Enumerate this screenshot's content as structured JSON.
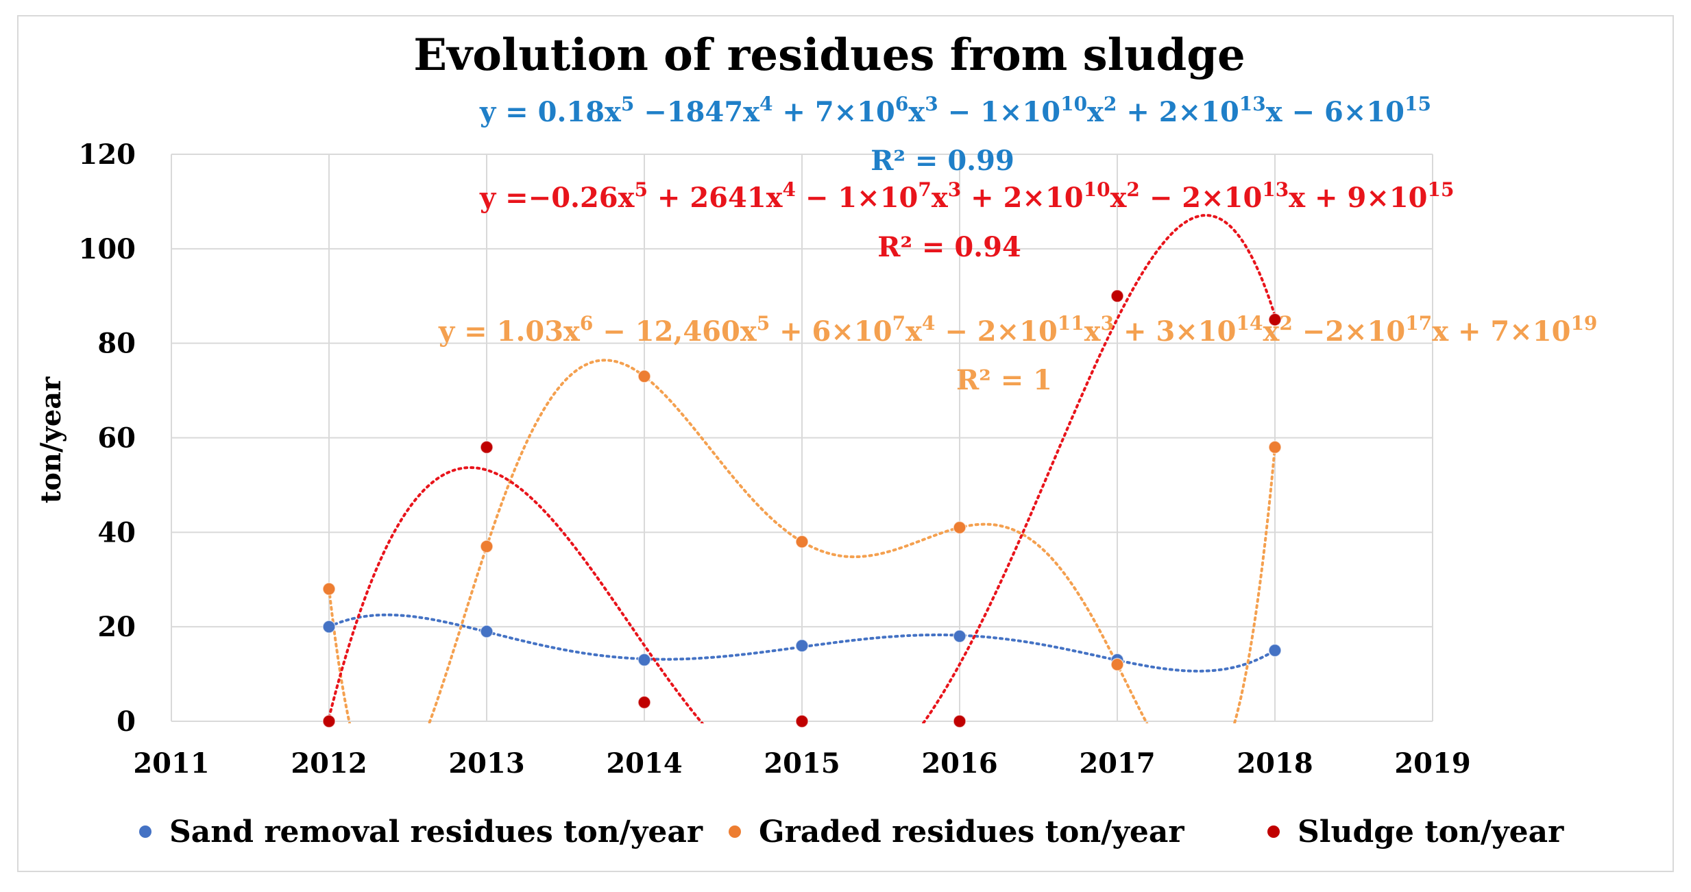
{
  "chart_data": {
    "type": "scatter",
    "title": "Evolution of residues from sludge",
    "xlabel": "",
    "ylabel": "ton/year",
    "xlim": [
      2011,
      2019
    ],
    "ylim": [
      0,
      120
    ],
    "x_ticks": [
      "2011",
      "2012",
      "2013",
      "2014",
      "2015",
      "2016",
      "2017",
      "2018",
      "2019"
    ],
    "y_ticks": [
      "0",
      "20",
      "40",
      "60",
      "80",
      "100",
      "120"
    ],
    "grid": true,
    "legend_position": "bottom",
    "x": [
      2012,
      2013,
      2014,
      2015,
      2016,
      2017,
      2018
    ],
    "series": [
      {
        "name": "Sand removal residues ton/year",
        "color": "#4472C4",
        "trend_color": "#4472C4",
        "values": [
          20,
          19,
          13,
          16,
          18,
          13,
          15
        ],
        "trendline": "polynomial order 5",
        "equation": {
          "parts": [
            [
              "y = 0.18x",
              ""
            ],
            [
              "5",
              "sup"
            ],
            [
              " −1847x",
              ""
            ],
            [
              "4",
              "sup"
            ],
            [
              " + 7×10",
              ""
            ],
            [
              "6",
              "sup"
            ],
            [
              "x",
              ""
            ],
            [
              "3",
              "sup"
            ],
            [
              " − 1×10",
              ""
            ],
            [
              "10",
              "sup"
            ],
            [
              "x",
              ""
            ],
            [
              "2",
              "sup"
            ],
            [
              " + 2×10",
              ""
            ],
            [
              "13",
              "sup"
            ],
            [
              "x − 6×10",
              ""
            ],
            [
              "15",
              "sup"
            ]
          ],
          "r2": "R² = 0.99"
        }
      },
      {
        "name": "Graded residues ton/year",
        "color": "#ED7D31",
        "trend_color": "#F4A04F",
        "values": [
          28,
          37,
          73,
          38,
          41,
          12,
          58
        ],
        "trendline": "polynomial order 6",
        "equation": {
          "parts": [
            [
              "y = 1.03x",
              ""
            ],
            [
              "6",
              "sup"
            ],
            [
              " − 12,460x",
              ""
            ],
            [
              "5",
              "sup"
            ],
            [
              " + 6×10",
              ""
            ],
            [
              "7",
              "sup"
            ],
            [
              "x",
              ""
            ],
            [
              "4",
              "sup"
            ],
            [
              " − 2×10",
              ""
            ],
            [
              "11",
              "sup"
            ],
            [
              "x",
              ""
            ],
            [
              "3",
              "sup"
            ],
            [
              " + 3×10",
              ""
            ],
            [
              "14",
              "sup"
            ],
            [
              "x",
              ""
            ],
            [
              "2",
              "sup"
            ],
            [
              " −2×10",
              ""
            ],
            [
              "17",
              "sup"
            ],
            [
              "x + 7×10",
              ""
            ],
            [
              "19",
              "sup"
            ]
          ],
          "r2": "R² = 1"
        }
      },
      {
        "name": "Sludge ton/year",
        "color": "#C00000",
        "trend_color": "#E8141B",
        "values": [
          0,
          58,
          4,
          0,
          0,
          90,
          85
        ],
        "trendline": "polynomial order 5",
        "equation": {
          "parts": [
            [
              "y =−0.26x",
              ""
            ],
            [
              "5",
              "sup"
            ],
            [
              " + 2641x",
              ""
            ],
            [
              "4",
              "sup"
            ],
            [
              " − 1×10",
              ""
            ],
            [
              "7",
              "sup"
            ],
            [
              "x",
              ""
            ],
            [
              "3",
              "sup"
            ],
            [
              " + 2×10",
              ""
            ],
            [
              "10",
              "sup"
            ],
            [
              "x",
              ""
            ],
            [
              "2",
              "sup"
            ],
            [
              " − 2×10",
              ""
            ],
            [
              "13",
              "sup"
            ],
            [
              "x + 9×10",
              ""
            ],
            [
              "15",
              "sup"
            ]
          ],
          "r2": "R² = 0.94"
        }
      }
    ]
  }
}
